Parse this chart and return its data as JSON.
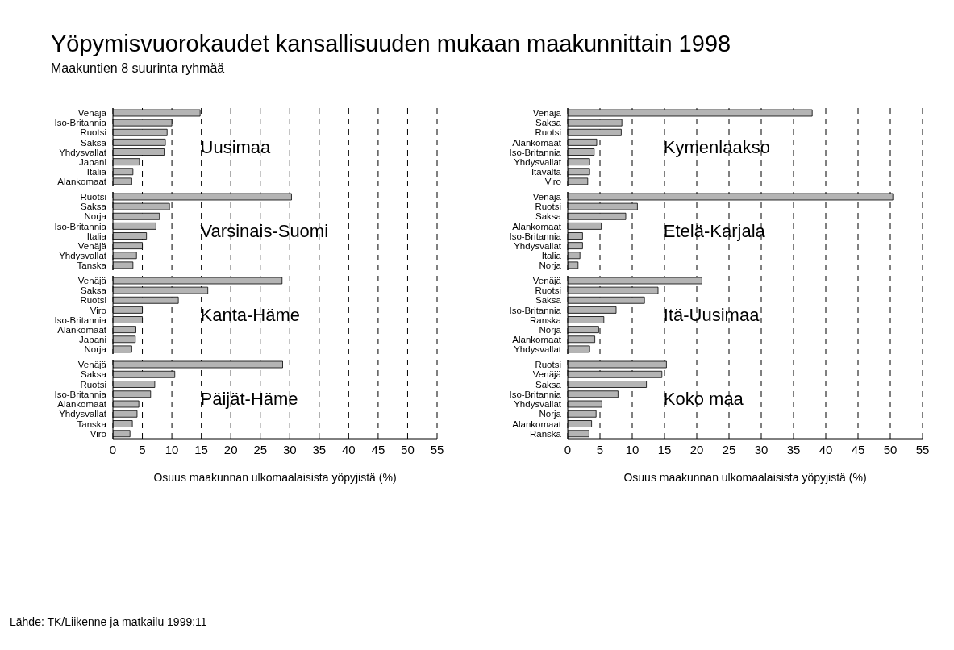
{
  "chart_data": [
    {
      "type": "bar",
      "orientation": "horizontal",
      "title": "Yöpymisvuorokaudet kansallisuuden mukaan maakunnittain 1998",
      "subtitle": "Maakuntien 8 suurinta ryhmää",
      "annotations": [
        "Uusimaa"
      ],
      "categories": [
        "Venäjä",
        "Iso-Britannia",
        "Ruotsi",
        "Saksa",
        "Yhdysvallat",
        "Japani",
        "Italia",
        "Alankomaat"
      ],
      "values": [
        14.8,
        10.0,
        9.2,
        8.9,
        8.7,
        4.5,
        3.4,
        3.2
      ],
      "color": "#b4b4b4",
      "xlim": [
        0,
        55
      ],
      "xticks": [
        0,
        5,
        10,
        15,
        20,
        25,
        30,
        35,
        40,
        45,
        50,
        55
      ],
      "grid": "x",
      "tick_labels": "y",
      "legend": false
    },
    {
      "type": "bar",
      "orientation": "horizontal",
      "annotations": [
        "Varsinais-Suomi"
      ],
      "categories": [
        "Ruotsi",
        "Saksa",
        "Norja",
        "Iso-Britannia",
        "Italia",
        "Venäjä",
        "Yhdysvallat",
        "Tanska"
      ],
      "values": [
        30.3,
        9.6,
        7.9,
        7.3,
        5.7,
        5.0,
        4.0,
        3.4
      ],
      "color": "#b4b4b4",
      "xlim": [
        0,
        55
      ],
      "xticks": [
        0,
        5,
        10,
        15,
        20,
        25,
        30,
        35,
        40,
        45,
        50,
        55
      ],
      "grid": "x",
      "tick_labels": "y",
      "legend": false
    },
    {
      "type": "bar",
      "orientation": "horizontal",
      "annotations": [
        "Kanta-Häme"
      ],
      "categories": [
        "Venäjä",
        "Saksa",
        "Ruotsi",
        "Viro",
        "Iso-Britannia",
        "Alankomaat",
        "Japani",
        "Norja"
      ],
      "values": [
        28.7,
        16.1,
        11.1,
        5.0,
        5.0,
        3.9,
        3.8,
        3.2
      ],
      "color": "#b4b4b4",
      "xlim": [
        0,
        55
      ],
      "xticks": [
        0,
        5,
        10,
        15,
        20,
        25,
        30,
        35,
        40,
        45,
        50,
        55
      ],
      "grid": "x",
      "tick_labels": "y",
      "legend": false
    },
    {
      "type": "bar",
      "orientation": "horizontal",
      "xlabel": "Osuus maakunnan ulkomaalaisista yöpyjistä (%)",
      "annotations": [
        "Päijät-Häme",
        "Lähde: TK/Liikenne ja matkailu 1999:11"
      ],
      "categories": [
        "Venäjä",
        "Saksa",
        "Ruotsi",
        "Iso-Britannia",
        "Alankomaat",
        "Yhdysvallat",
        "Tanska",
        "Viro"
      ],
      "values": [
        28.8,
        10.5,
        7.1,
        6.4,
        4.4,
        4.1,
        3.3,
        2.9
      ],
      "color": "#b4b4b4",
      "xlim": [
        0,
        55
      ],
      "xticks": [
        0,
        5,
        10,
        15,
        20,
        25,
        30,
        35,
        40,
        45,
        50,
        55
      ],
      "grid": "x",
      "legend": false
    },
    {
      "type": "bar",
      "orientation": "horizontal",
      "annotations": [
        "Kymenlaakso"
      ],
      "categories": [
        "Venäjä",
        "Saksa",
        "Ruotsi",
        "Alankomaat",
        "Iso-Britannia",
        "Yhdysvallat",
        "Itävalta",
        "Viro"
      ],
      "values": [
        37.9,
        8.4,
        8.3,
        4.5,
        4.1,
        3.4,
        3.4,
        3.1
      ],
      "color": "#b4b4b4",
      "xlim": [
        0,
        55
      ],
      "xticks": [
        0,
        5,
        10,
        15,
        20,
        25,
        30,
        35,
        40,
        45,
        50,
        55
      ],
      "grid": "x",
      "tick_labels": "y",
      "legend": false
    },
    {
      "type": "bar",
      "orientation": "horizontal",
      "annotations": [
        "Etelä-Karjala"
      ],
      "categories": [
        "Venäjä",
        "Ruotsi",
        "Saksa",
        "Alankomaat",
        "Iso-Britannia",
        "Yhdysvallat",
        "Italia",
        "Norja"
      ],
      "values": [
        50.4,
        10.8,
        9.0,
        5.2,
        2.3,
        2.3,
        1.9,
        1.6
      ],
      "color": "#b4b4b4",
      "xlim": [
        0,
        55
      ],
      "xticks": [
        0,
        5,
        10,
        15,
        20,
        25,
        30,
        35,
        40,
        45,
        50,
        55
      ],
      "grid": "x",
      "tick_labels": "y",
      "legend": false
    },
    {
      "type": "bar",
      "orientation": "horizontal",
      "annotations": [
        "Itä-Uusimaa"
      ],
      "categories": [
        "Venäjä",
        "Ruotsi",
        "Saksa",
        "Iso-Britannia",
        "Ranska",
        "Norja",
        "Alankomaat",
        "Yhdysvallat"
      ],
      "values": [
        20.8,
        14.0,
        11.9,
        7.5,
        5.6,
        4.8,
        4.2,
        3.4
      ],
      "color": "#b4b4b4",
      "xlim": [
        0,
        55
      ],
      "xticks": [
        0,
        5,
        10,
        15,
        20,
        25,
        30,
        35,
        40,
        45,
        50,
        55
      ],
      "grid": "x",
      "tick_labels": "y",
      "legend": false
    },
    {
      "type": "bar",
      "orientation": "horizontal",
      "xlabel": "Osuus maakunnan ulkomaalaisista yöpyjistä (%)",
      "annotations": [
        "Koko maa"
      ],
      "categories": [
        "Ruotsi",
        "Venäjä",
        "Saksa",
        "Iso-Britannia",
        "Yhdysvallat",
        "Norja",
        "Alankomaat",
        "Ranska"
      ],
      "values": [
        15.3,
        14.6,
        12.2,
        7.8,
        5.3,
        4.4,
        3.7,
        3.3
      ],
      "color": "#b4b4b4",
      "xlim": [
        0,
        55
      ],
      "xticks": [
        0,
        5,
        10,
        15,
        20,
        25,
        30,
        35,
        40,
        45,
        50,
        55
      ],
      "grid": "x",
      "legend": false
    }
  ]
}
